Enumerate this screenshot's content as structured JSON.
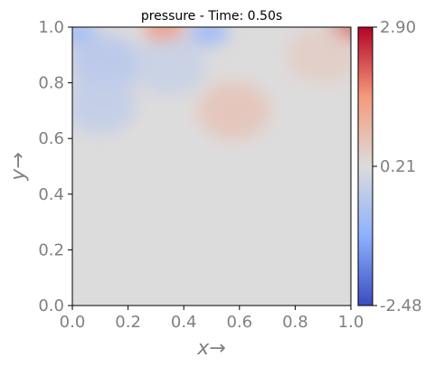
{
  "chart_data": {
    "type": "heatmap",
    "title": "pressure - Time: 0.50s",
    "xlabel": "x→",
    "ylabel": "y→",
    "xlim": [
      0.0,
      1.0
    ],
    "ylim": [
      0.0,
      1.0
    ],
    "x_ticks": [
      "0.0",
      "0.2",
      "0.4",
      "0.6",
      "0.8",
      "1.0"
    ],
    "y_ticks": [
      "0.0",
      "0.2",
      "0.4",
      "0.6",
      "0.8",
      "1.0"
    ],
    "x_tick_values": [
      0.0,
      0.2,
      0.4,
      0.6,
      0.8,
      1.0
    ],
    "y_tick_values": [
      0.0,
      0.2,
      0.4,
      0.6,
      0.8,
      1.0
    ],
    "colorbar": {
      "colormap": "coolwarm",
      "min": -2.48,
      "max": 2.9,
      "ticks": [
        "2.90",
        "0.21",
        "-2.48"
      ],
      "tick_values": [
        2.9,
        0.21,
        -2.48
      ]
    },
    "background_value": 0.21,
    "features": [
      {
        "x": 0.33,
        "y": 0.99,
        "value": 1.6
      },
      {
        "x": 0.49,
        "y": 0.98,
        "value": -0.9
      },
      {
        "x": 0.99,
        "y": 0.99,
        "value": 2.2
      },
      {
        "x": 0.02,
        "y": 0.98,
        "value": -0.8
      },
      {
        "x": 0.12,
        "y": 0.87,
        "value": -0.4
      },
      {
        "x": 0.35,
        "y": 0.86,
        "value": -0.15
      },
      {
        "x": 0.58,
        "y": 0.7,
        "value": 0.7
      },
      {
        "x": 0.9,
        "y": 0.9,
        "value": 0.5
      },
      {
        "x": 0.1,
        "y": 0.72,
        "value": -0.25
      }
    ]
  }
}
